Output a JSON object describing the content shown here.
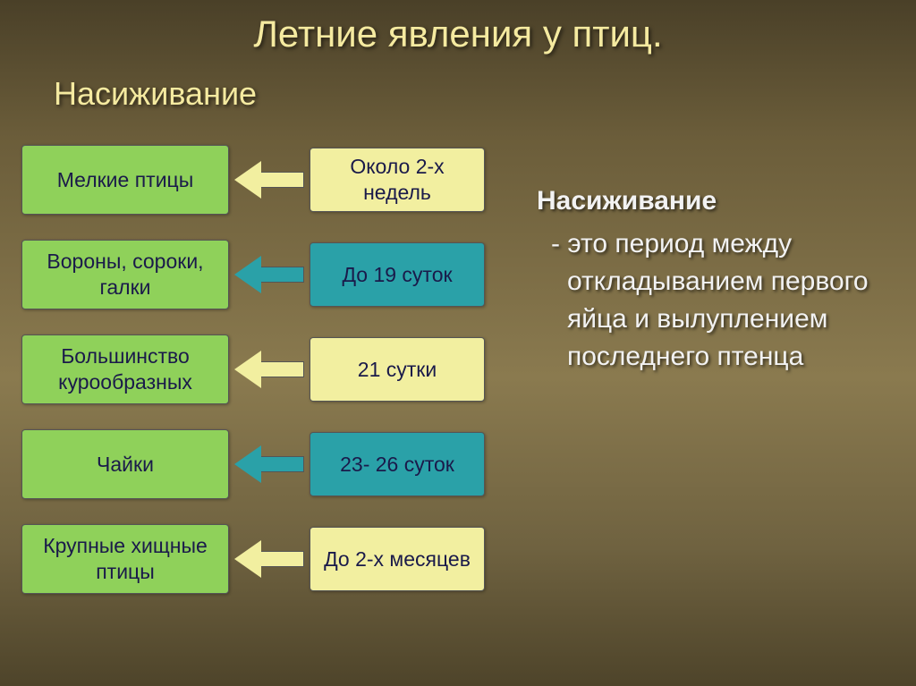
{
  "title": {
    "text": "Летние явления у птиц.",
    "color": "#f5eaa0"
  },
  "subtitle": {
    "text": "Насиживание",
    "color": "#f5eaa0"
  },
  "definition": {
    "term": "Насиживание",
    "body": "- это период между откладыванием первого яйца и вылуплением последнего птенца",
    "color": "#f2f2f2"
  },
  "colors": {
    "green_box": "#8fd15a",
    "yellow_box": "#f2efa0",
    "teal_box": "#2aa1a8",
    "yellow_arrow": "#f2efa0",
    "teal_arrow": "#2aa1a8",
    "box_border": "#555555",
    "box_text": "#1a1a4a"
  },
  "rows": [
    {
      "left": "Мелкие птицы",
      "right": "Около 2-х недель",
      "right_bg": "yellow_box",
      "arrow": "yellow_arrow"
    },
    {
      "left": "Вороны, сороки, галки",
      "right": "До 19 суток",
      "right_bg": "teal_box",
      "arrow": "teal_arrow"
    },
    {
      "left": "Большинство курообразных",
      "right": "21 сутки",
      "right_bg": "yellow_box",
      "arrow": "yellow_arrow"
    },
    {
      "left": "Чайки",
      "right": "23- 26 суток",
      "right_bg": "teal_box",
      "arrow": "teal_arrow"
    },
    {
      "left": "Крупные хищные птицы",
      "right": "До 2-х месяцев",
      "right_bg": "yellow_box",
      "arrow": "yellow_arrow"
    }
  ]
}
